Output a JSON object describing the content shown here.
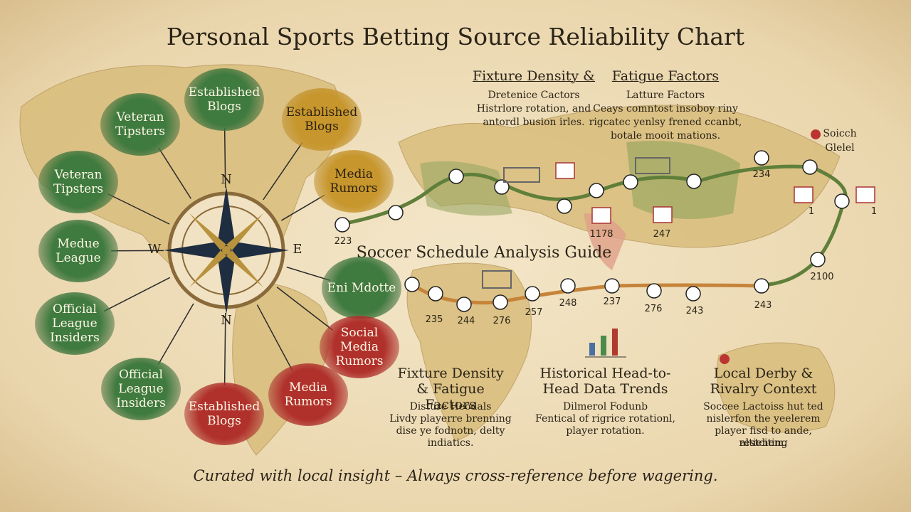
{
  "header": {
    "title": "Personal Sports Betting Source Reliability Chart"
  },
  "sources": [
    "Established Blogs",
    "Veteran Tipsters",
    "Established Blogs",
    "Veteran Tipsters",
    "Media Rumors",
    "Medue League",
    "Official League Insiders",
    "Eni Mdotte",
    "Social Media Rumors",
    "Official League Insiders",
    "Established Blogs",
    "Media Rumors"
  ],
  "compass": [
    "N",
    "W",
    "E",
    "N"
  ],
  "top_panels": [
    {
      "heading": "Fixture Density &",
      "lines": [
        "Dretenice Cactors",
        "Histrlore rotation, and",
        "antordl busion irles."
      ]
    },
    {
      "heading": "Fatigue Factors",
      "lines": [
        "Latture Factors",
        "Ceays comntost insoboy riny",
        "rigcatec yenlsy frened ccanbt,",
        "botale mooit mations."
      ]
    }
  ],
  "guide_title": "Soccer Schedule Analysis Guide",
  "pin_label": [
    "Soicch",
    "Glelel"
  ],
  "route_labels": [
    223,
    235,
    244,
    276,
    257,
    248,
    237,
    276,
    243,
    243,
    2100,
    234,
    1178,
    247,
    1,
    1
  ],
  "bottom_panels": [
    {
      "heading": "Fixture Density & Fatigue Factors",
      "lines": [
        "Disture Heodals",
        "Livdy playerre brenning",
        "dise ye fodnotn, delty",
        "indiatics."
      ]
    },
    {
      "heading": "Historical Head-to-Head Data Trends",
      "lines": [
        "Dilmerol Fodunb",
        "Fentical of rigrice rotationl,",
        "player rotation."
      ]
    },
    {
      "heading": "Local Derby & Rivalry Context",
      "lines": [
        "Soccee Lactoiss hut ted",
        "nislerfon the yeelerem",
        "player fisd to ande, restciting",
        "altiehem."
      ]
    }
  ],
  "footer": "Curated with local insight – Always cross-reference before wagering."
}
